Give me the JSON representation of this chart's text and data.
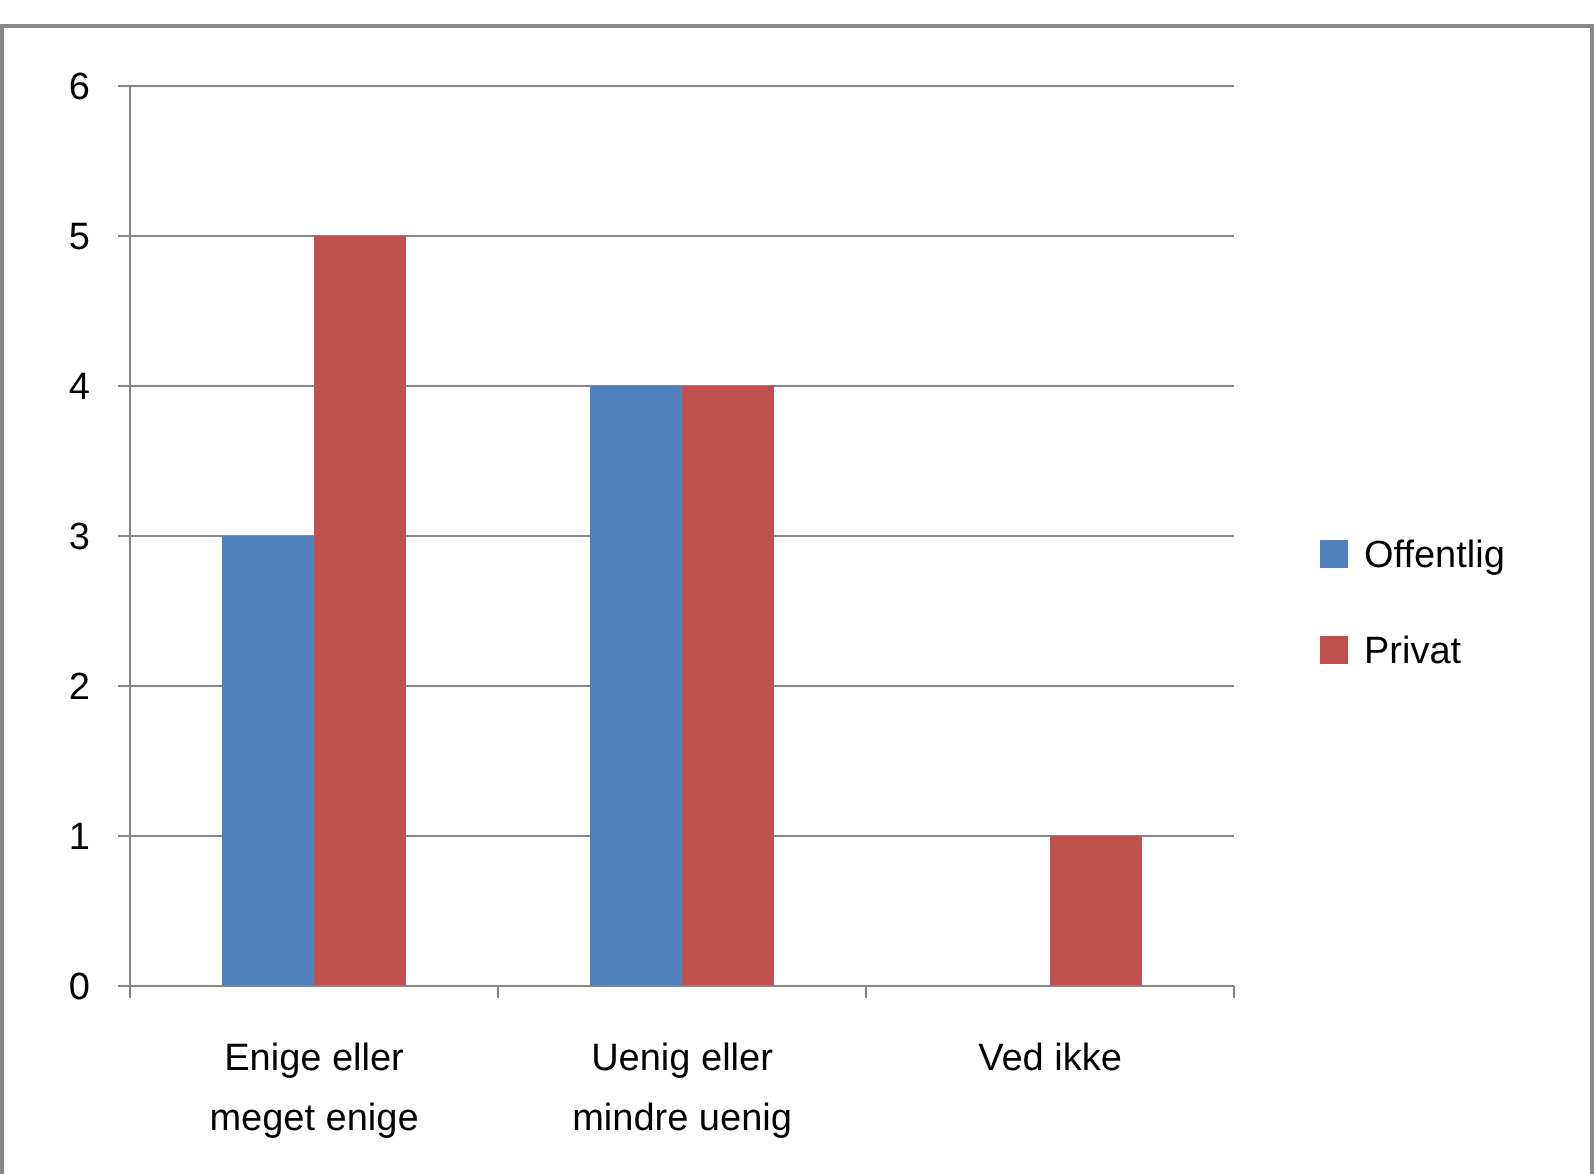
{
  "chart_data": {
    "type": "bar",
    "categories": [
      "Enige eller meget enige",
      "Uenig eller mindre uenig",
      "Ved ikke"
    ],
    "series": [
      {
        "name": "Offentlig",
        "color": "#4f81bd",
        "values": [
          3,
          4,
          0
        ]
      },
      {
        "name": "Privat",
        "color": "#c0504d",
        "values": [
          5,
          4,
          1
        ]
      }
    ],
    "ylim": [
      0,
      6
    ],
    "yticks": [
      0,
      1,
      2,
      3,
      4,
      5,
      6
    ],
    "grid": "y",
    "legend": "right"
  }
}
